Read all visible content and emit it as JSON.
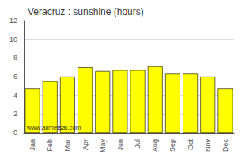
{
  "chart_data": {
    "type": "bar",
    "title": "Veracruz : sunshine (hours)",
    "categories": [
      "Jan",
      "Feb",
      "Mar",
      "Apr",
      "May",
      "Jun",
      "Jul",
      "Aug",
      "Sep",
      "Oct",
      "Nov",
      "Dec"
    ],
    "values": [
      4.7,
      5.5,
      6.0,
      7.0,
      6.6,
      6.7,
      6.7,
      7.1,
      6.3,
      6.3,
      6.0,
      4.7
    ],
    "color": "#FFFF00",
    "ylim": [
      0,
      12
    ],
    "yticks": [
      0,
      2,
      4,
      6,
      8,
      10,
      12
    ],
    "grid": true,
    "annotations": [
      "www.allmetsat.com"
    ]
  }
}
